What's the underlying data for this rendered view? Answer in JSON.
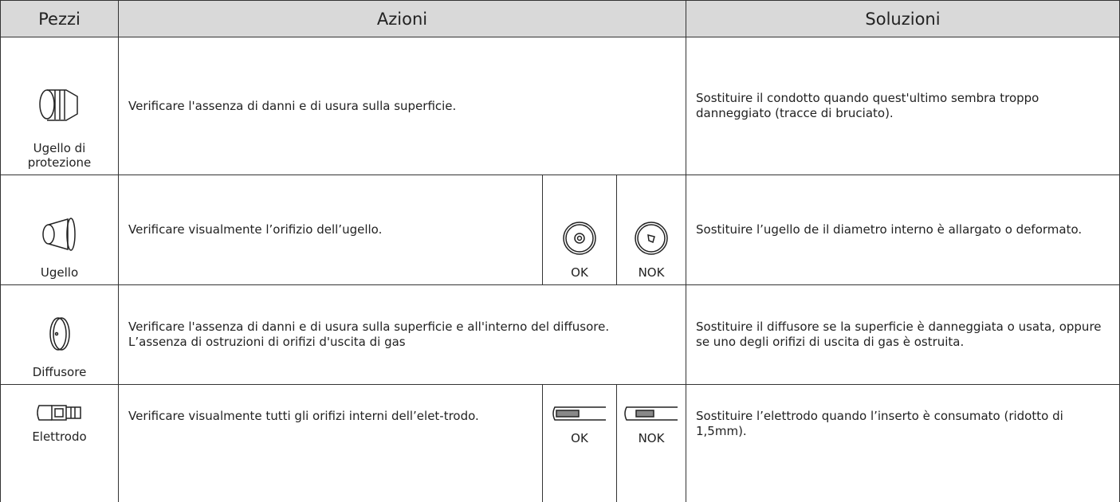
{
  "header": [
    "Pezzi",
    "Azioni",
    "Soluzioni"
  ],
  "rows": [
    {
      "part": "Ugello di protezione",
      "action": [
        "Verificare l'assenza di danni e di usura sulla superficie."
      ],
      "solution": "Sostituire il condotto quando quest'ultimo sembra troppo danneggiato (tracce di bruciato)."
    },
    {
      "part": "Ugello",
      "action": [
        "Verificare visualmente l’orifizio dell’ugello."
      ],
      "ok": "OK",
      "nok": "NOK",
      "solution": "Sostituire l’ugello de il diametro interno è allargato o deformato."
    },
    {
      "part": "Diffusore",
      "action": [
        "Verificare l'assenza di danni e di usura sulla superficie e all'interno del diffusore.",
        "L’assenza di ostruzioni di orifizi d'uscita di gas"
      ],
      "solution": "Sostituire il diffusore se la superficie è danneggiata o usata, oppure se uno degli orifizi di uscita di gas è ostruita."
    },
    {
      "part": "Elettrodo",
      "action": [
        "Verificare visualmente tutti gli orifizi interni dell’elet-trodo."
      ],
      "ok": "OK",
      "nok": "NOK",
      "solution": "Sostituire l’elettrodo quando l’inserto è consumato (ridotto di 1,5mm)."
    }
  ]
}
